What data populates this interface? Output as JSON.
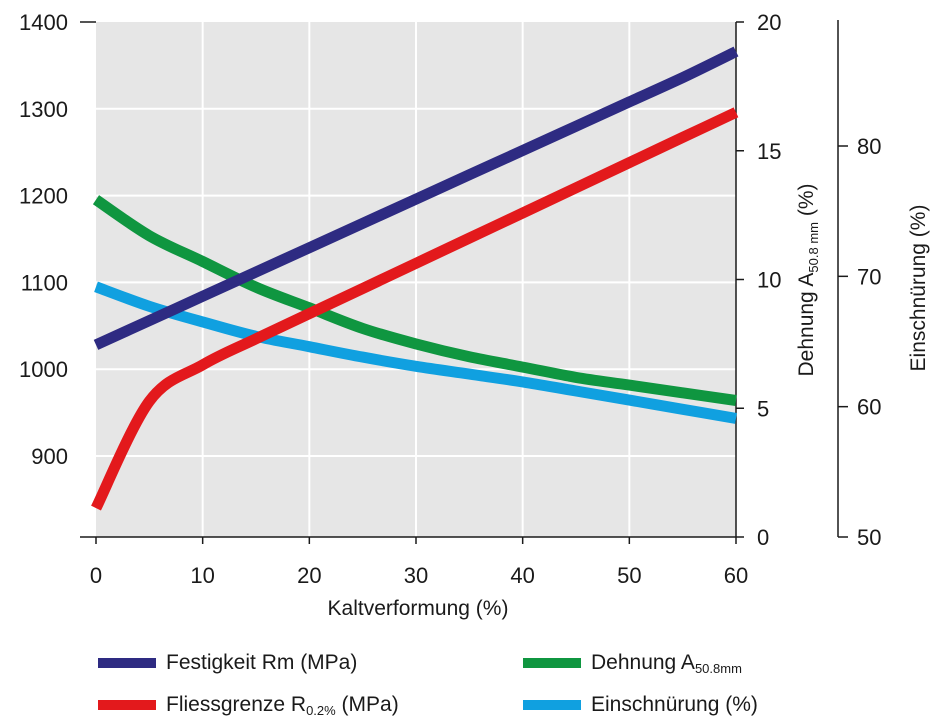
{
  "chart_data": {
    "type": "line",
    "x": [
      0,
      5,
      10,
      15,
      20,
      25,
      30,
      35,
      40,
      45,
      50,
      55,
      60
    ],
    "xlabel": "Kaltverformung (%)",
    "xlim": [
      0,
      60
    ],
    "xticks": [
      "0",
      "10",
      "20",
      "30",
      "40",
      "50",
      "60"
    ],
    "left_axis": {
      "ylim": [
        820,
        1400
      ],
      "ticks": [
        "900",
        "1000",
        "1100",
        "1200",
        "1300",
        "1400"
      ]
    },
    "right_axis_1": {
      "label_main": "Dehnung A",
      "label_sub": "50.8 mm",
      "label_end": " (%)",
      "ylim": [
        0,
        20
      ],
      "ticks": [
        "0",
        "5",
        "10",
        "15",
        "20"
      ]
    },
    "right_axis_2": {
      "label": "Einschnürung (%)",
      "ylim": [
        50,
        80
      ],
      "ticks": [
        "50",
        "60",
        "70",
        "80"
      ]
    },
    "grid": true,
    "series": [
      {
        "name": "Festigkeit Rm (MPa)",
        "color": "#2e2b82",
        "axis": "left",
        "values": [
          1028,
          1056,
          1084,
          1112,
          1140,
          1168,
          1196,
          1224,
          1252,
          1280,
          1308,
          1336,
          1366
        ]
      },
      {
        "name": "Fliessgrenze R0.2% (MPa)",
        "name_main": "Fliessgrenze R",
        "name_sub": "0.2%",
        "name_end": " (MPa)",
        "color": "#e3191c",
        "axis": "left",
        "values": [
          840,
          963,
          1005,
          1035,
          1064,
          1093,
          1122,
          1151,
          1180,
          1209,
          1238,
          1267,
          1296
        ]
      },
      {
        "name": "Dehnung A50.8mm",
        "name_main": "Dehnung A",
        "name_sub": "50.8mm",
        "name_end": "",
        "color": "#0f9640",
        "axis": "right1",
        "values": [
          13.1,
          11.7,
          10.7,
          9.7,
          8.9,
          8.1,
          7.5,
          7.0,
          6.6,
          6.2,
          5.9,
          5.6,
          5.3
        ]
      },
      {
        "name": "Einschnürung (%)",
        "color": "#10a0e0",
        "axis": "right2",
        "values": [
          69.2,
          67.7,
          66.5,
          65.4,
          64.6,
          63.8,
          63.1,
          62.5,
          61.9,
          61.2,
          60.5,
          59.8,
          59.1
        ]
      }
    ]
  }
}
